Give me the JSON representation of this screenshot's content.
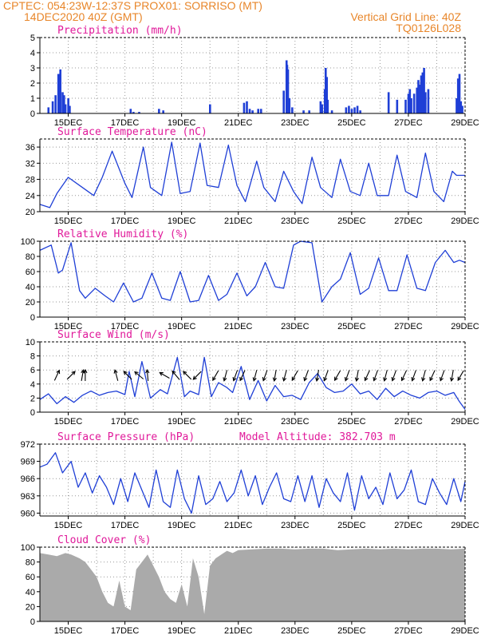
{
  "header": {
    "line1_left": "CPTEC:   054:23W-12:37S   PROX01: SORRISO (MT)",
    "line2_left": "14DEC2020 40Z (GMT)",
    "line2_right": "Vertical Grid Line: 40Z",
    "line3_right": "TQ0126L028"
  },
  "colors": {
    "header": "#e8862a",
    "title": "#e0199a",
    "line": "#1f3fd6",
    "bar": "#1f3fd6",
    "cloud": "#aaaaaa",
    "grid": "#999999"
  },
  "chart_data": [
    {
      "id": "precip",
      "type": "bar",
      "title": "Precipitation (mm/h)",
      "unit": "mm/h",
      "x_range": [
        "14DEC2020 00Z",
        "29DEC2020 00Z"
      ],
      "ylim": [
        0,
        5
      ],
      "yticks": [
        0,
        1,
        2,
        3,
        4,
        5
      ],
      "grid": true,
      "x": [
        14.3,
        14.45,
        14.55,
        14.65,
        14.72,
        14.8,
        14.85,
        14.9,
        15.0,
        15.05,
        17.2,
        17.3,
        17.5,
        18.2,
        18.35,
        20.0,
        21.2,
        21.3,
        21.4,
        21.5,
        21.7,
        21.8,
        22.6,
        22.7,
        22.72,
        22.75,
        22.8,
        22.9,
        23.3,
        23.5,
        23.9,
        23.95,
        24.05,
        24.08,
        24.12,
        24.15,
        24.3,
        24.8,
        24.9,
        25.0,
        25.1,
        25.2,
        25.3,
        26.3,
        26.6,
        26.9,
        27.0,
        27.05,
        27.1,
        27.2,
        27.3,
        27.35,
        27.4,
        27.45,
        27.5,
        27.55,
        27.6,
        27.7,
        28.7,
        28.75,
        28.8,
        28.85,
        28.9
      ],
      "values": [
        0.4,
        0.8,
        1.2,
        2.6,
        2.9,
        1.4,
        1.2,
        0.6,
        1.0,
        0.5,
        0.3,
        0.1,
        0.1,
        0.3,
        0.2,
        0.6,
        0.7,
        0.8,
        0.3,
        0.2,
        0.3,
        0.3,
        1.5,
        3.5,
        3.2,
        2.9,
        1.0,
        0.4,
        0.2,
        0.2,
        0.8,
        0.6,
        1.6,
        3.0,
        2.4,
        0.9,
        0.2,
        0.4,
        0.5,
        0.3,
        0.4,
        0.5,
        0.2,
        1.4,
        0.9,
        0.9,
        1.3,
        1.6,
        1.0,
        1.3,
        1.7,
        2.2,
        1.9,
        2.5,
        2.7,
        3.0,
        1.4,
        1.6,
        1.0,
        2.3,
        2.6,
        0.8,
        0.5
      ]
    },
    {
      "id": "temp",
      "type": "line",
      "title": "Surface Temperature (nC)",
      "ylim": [
        20,
        38
      ],
      "yticks": [
        20,
        24,
        28,
        32,
        36
      ],
      "grid": true,
      "x": [
        14.0,
        14.35,
        14.6,
        15.0,
        15.5,
        15.9,
        16.2,
        16.55,
        17.0,
        17.25,
        17.65,
        17.9,
        18.3,
        18.65,
        18.95,
        19.3,
        19.65,
        19.9,
        20.3,
        20.65,
        20.95,
        21.25,
        21.65,
        21.9,
        22.3,
        22.6,
        22.95,
        23.25,
        23.6,
        23.9,
        24.3,
        24.6,
        24.95,
        25.3,
        25.6,
        25.9,
        26.3,
        26.6,
        26.9,
        27.3,
        27.6,
        27.9,
        28.25,
        28.55,
        28.7,
        29.0
      ],
      "y": [
        21.8,
        21.0,
        24.5,
        28.5,
        26.0,
        24.0,
        28.5,
        35.0,
        27.0,
        23.5,
        36.0,
        26.0,
        24.0,
        37.2,
        24.5,
        25.0,
        37.0,
        26.5,
        26.0,
        36.5,
        26.5,
        22.5,
        32.5,
        26.0,
        22.5,
        30.0,
        25.0,
        22.0,
        33.5,
        26.0,
        23.5,
        33.0,
        25.0,
        24.0,
        32.0,
        24.0,
        24.0,
        34.0,
        25.0,
        23.5,
        34.5,
        25.0,
        22.5,
        30.0,
        29.0,
        29.0
      ]
    },
    {
      "id": "rh",
      "type": "line",
      "title": "Relative Humidity (%)",
      "ylim": [
        0,
        100
      ],
      "yticks": [
        0,
        20,
        40,
        60,
        80,
        100
      ],
      "grid": true,
      "x": [
        14.0,
        14.4,
        14.65,
        14.8,
        15.1,
        15.4,
        15.6,
        15.95,
        16.3,
        16.6,
        16.95,
        17.3,
        17.6,
        17.95,
        18.3,
        18.6,
        18.95,
        19.3,
        19.6,
        19.95,
        20.3,
        20.6,
        20.95,
        21.3,
        21.6,
        21.95,
        22.3,
        22.6,
        22.95,
        23.2,
        23.6,
        23.95,
        24.3,
        24.6,
        24.95,
        25.3,
        25.6,
        25.95,
        26.3,
        26.6,
        26.95,
        27.3,
        27.6,
        27.95,
        28.3,
        28.6,
        28.8,
        29.0
      ],
      "y": [
        88,
        95,
        58,
        62,
        98,
        35,
        25,
        38,
        28,
        20,
        45,
        20,
        25,
        58,
        25,
        22,
        60,
        20,
        22,
        55,
        22,
        30,
        58,
        28,
        40,
        72,
        40,
        38,
        95,
        100,
        98,
        20,
        40,
        50,
        85,
        30,
        38,
        78,
        35,
        35,
        82,
        38,
        35,
        72,
        88,
        72,
        75,
        72
      ]
    },
    {
      "id": "wind",
      "type": "line",
      "title": "Surface Wind (m/s)",
      "ylim": [
        0,
        10
      ],
      "yticks": [
        0,
        2,
        4,
        6,
        8,
        10
      ],
      "grid": true,
      "x": [
        14.0,
        14.3,
        14.6,
        14.9,
        15.2,
        15.5,
        15.8,
        16.1,
        16.4,
        16.7,
        17.0,
        17.15,
        17.35,
        17.6,
        17.9,
        18.25,
        18.5,
        18.85,
        19.1,
        19.3,
        19.6,
        19.8,
        20.05,
        20.3,
        20.6,
        20.8,
        21.1,
        21.4,
        21.7,
        22.0,
        22.3,
        22.6,
        22.9,
        23.2,
        23.5,
        23.8,
        24.1,
        24.4,
        24.7,
        25.0,
        25.3,
        25.6,
        25.9,
        26.2,
        26.5,
        26.8,
        27.1,
        27.4,
        27.7,
        28.0,
        28.3,
        28.6,
        28.8,
        29.0
      ],
      "y": [
        1.8,
        2.6,
        1.2,
        2.2,
        1.4,
        2.4,
        3.0,
        2.4,
        2.8,
        3.0,
        2.5,
        5.8,
        2.2,
        7.2,
        2.0,
        3.2,
        2.6,
        7.8,
        2.2,
        3.0,
        2.5,
        7.8,
        2.2,
        4.2,
        3.5,
        2.8,
        6.5,
        1.8,
        4.5,
        1.6,
        3.8,
        2.2,
        2.4,
        1.8,
        4.2,
        5.5,
        3.5,
        2.8,
        3.0,
        4.0,
        2.6,
        3.0,
        1.8,
        3.4,
        2.2,
        3.0,
        2.4,
        2.0,
        2.8,
        3.0,
        2.4,
        2.8,
        1.5,
        0.4
      ]
    },
    {
      "id": "pressure",
      "type": "line",
      "title": "Surface Pressure (hPa)",
      "annotation": "Model Altitude: 382.703 m",
      "ylim": [
        959.5,
        972
      ],
      "yticks": [
        960,
        963,
        966,
        969,
        972
      ],
      "grid": true,
      "x": [
        14.0,
        14.25,
        14.55,
        14.8,
        15.1,
        15.35,
        15.6,
        15.85,
        16.1,
        16.35,
        16.6,
        16.85,
        17.1,
        17.35,
        17.6,
        17.85,
        18.1,
        18.35,
        18.6,
        18.85,
        19.1,
        19.35,
        19.6,
        19.85,
        20.1,
        20.35,
        20.6,
        20.85,
        21.1,
        21.35,
        21.6,
        21.85,
        22.1,
        22.35,
        22.6,
        22.85,
        23.1,
        23.35,
        23.6,
        23.85,
        24.1,
        24.35,
        24.6,
        24.85,
        25.1,
        25.35,
        25.6,
        25.85,
        26.1,
        26.35,
        26.6,
        26.85,
        27.1,
        27.35,
        27.6,
        27.85,
        28.1,
        28.35,
        28.6,
        28.85,
        29.0
      ],
      "y": [
        968.0,
        968.5,
        970.5,
        967.0,
        969.0,
        964.5,
        967.0,
        963.5,
        966.5,
        964.5,
        961.5,
        966.0,
        962.0,
        967.0,
        964.0,
        961.0,
        967.5,
        962.0,
        961.0,
        967.5,
        962.5,
        960.0,
        966.5,
        961.5,
        962.5,
        965.5,
        962.0,
        963.5,
        967.5,
        963.0,
        966.5,
        961.5,
        964.5,
        967.0,
        962.5,
        962.0,
        966.5,
        962.0,
        966.5,
        961.0,
        966.0,
        963.5,
        962.0,
        967.0,
        960.5,
        966.5,
        962.5,
        964.5,
        961.5,
        967.0,
        962.5,
        964.0,
        967.5,
        962.0,
        961.5,
        966.0,
        963.5,
        961.5,
        966.0,
        962.0,
        965.5
      ]
    },
    {
      "id": "cloud",
      "type": "area",
      "title": "Cloud Cover (%)",
      "ylim": [
        0,
        100
      ],
      "yticks": [
        0,
        20,
        40,
        60,
        80,
        100
      ],
      "grid": true,
      "x": [
        14.0,
        14.3,
        14.6,
        14.9,
        15.1,
        15.4,
        15.6,
        15.8,
        16.0,
        16.2,
        16.4,
        16.6,
        16.8,
        17.0,
        17.2,
        17.4,
        17.6,
        17.8,
        18.0,
        18.2,
        18.4,
        18.6,
        18.8,
        19.0,
        19.2,
        19.4,
        19.6,
        19.8,
        20.0,
        20.2,
        20.4,
        20.6,
        20.8,
        21.0,
        21.5,
        22.0,
        22.5,
        23.0,
        23.5,
        24.0,
        24.5,
        25.0,
        25.5,
        26.0,
        26.5,
        27.0,
        27.5,
        28.0,
        28.5,
        29.0
      ],
      "y": [
        92,
        90,
        88,
        92,
        90,
        85,
        80,
        70,
        60,
        40,
        25,
        20,
        55,
        20,
        15,
        70,
        80,
        90,
        75,
        60,
        40,
        30,
        25,
        50,
        20,
        85,
        60,
        10,
        75,
        85,
        90,
        95,
        92,
        96,
        97,
        98,
        98,
        97,
        98,
        98,
        96,
        97,
        98,
        97,
        98,
        97,
        98,
        98,
        97,
        98
      ]
    }
  ],
  "x_ticks": [
    "15DEC",
    "17DEC",
    "19DEC",
    "21DEC",
    "23DEC",
    "25DEC",
    "27DEC",
    "29DEC"
  ],
  "wind_arrows": [
    {
      "day": 14.6,
      "dir": 205
    },
    {
      "day": 15.1,
      "dir": 225
    },
    {
      "day": 15.5,
      "dir": 190
    },
    {
      "day": 15.6,
      "dir": 180
    },
    {
      "day": 16.7,
      "dir": 165
    },
    {
      "day": 17.1,
      "dir": 135
    },
    {
      "day": 17.5,
      "dir": 130
    },
    {
      "day": 17.8,
      "dir": 175
    },
    {
      "day": 18.4,
      "dir": 120
    },
    {
      "day": 18.8,
      "dir": 140
    },
    {
      "day": 19.2,
      "dir": 135
    },
    {
      "day": 19.55,
      "dir": 45
    },
    {
      "day": 20.2,
      "dir": 30
    },
    {
      "day": 20.55,
      "dir": 15
    },
    {
      "day": 20.9,
      "dir": 20
    },
    {
      "day": 21.15,
      "dir": 25
    },
    {
      "day": 21.6,
      "dir": 15
    },
    {
      "day": 21.95,
      "dir": 20
    },
    {
      "day": 22.3,
      "dir": 10
    },
    {
      "day": 22.65,
      "dir": 15
    },
    {
      "day": 23.0,
      "dir": 30
    },
    {
      "day": 23.4,
      "dir": 20
    },
    {
      "day": 23.8,
      "dir": 10
    },
    {
      "day": 24.1,
      "dir": 20
    },
    {
      "day": 24.5,
      "dir": 30
    },
    {
      "day": 24.85,
      "dir": 20
    },
    {
      "day": 25.2,
      "dir": 10
    },
    {
      "day": 25.55,
      "dir": 25
    },
    {
      "day": 25.85,
      "dir": 20
    },
    {
      "day": 26.2,
      "dir": 15
    },
    {
      "day": 26.5,
      "dir": 20
    },
    {
      "day": 26.85,
      "dir": 25
    },
    {
      "day": 27.2,
      "dir": 20
    },
    {
      "day": 27.55,
      "dir": 15
    },
    {
      "day": 27.85,
      "dir": 25
    },
    {
      "day": 28.2,
      "dir": 20
    },
    {
      "day": 28.55,
      "dir": 10
    },
    {
      "day": 28.85,
      "dir": 30
    }
  ]
}
